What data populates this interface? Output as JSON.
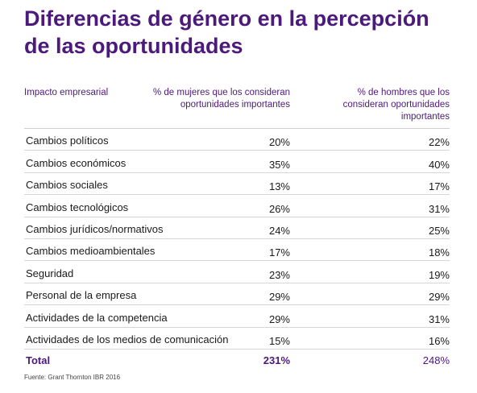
{
  "title": "Diferencias de género en la percepción de las oportunidades",
  "headers": {
    "col0": "Impacto empresarial",
    "col1": "% de mujeres que los consideran oportunidades importantes",
    "col2": "% de hombres que los consideran oportunidades importantes"
  },
  "rows": [
    {
      "label": "Cambios políticos",
      "women": "20%",
      "men": "22%"
    },
    {
      "label": "Cambios económicos",
      "women": "35%",
      "men": "40%"
    },
    {
      "label": "Cambios sociales",
      "women": "13%",
      "men": "17%"
    },
    {
      "label": "Cambios tecnológicos",
      "women": "26%",
      "men": "31%"
    },
    {
      "label": "Cambios jurídicos/normativos",
      "women": "24%",
      "men": "25%"
    },
    {
      "label": "Cambios medioambientales",
      "women": "17%",
      "men": "18%"
    },
    {
      "label": "Seguridad",
      "women": "23%",
      "men": "19%"
    },
    {
      "label": "Personal de la empresa",
      "women": "29%",
      "men": "29%"
    },
    {
      "label": "Actividades de la competencia",
      "women": "29%",
      "men": "31%"
    },
    {
      "label": "Actividades de los medios de comunicación",
      "women": "15%",
      "men": "16%"
    }
  ],
  "total": {
    "label": "Total",
    "women": "231%",
    "men": "248%"
  },
  "source": "Fuente: Grant Thornton IBR 2016",
  "colors": {
    "accent": "#4b1a7a"
  }
}
